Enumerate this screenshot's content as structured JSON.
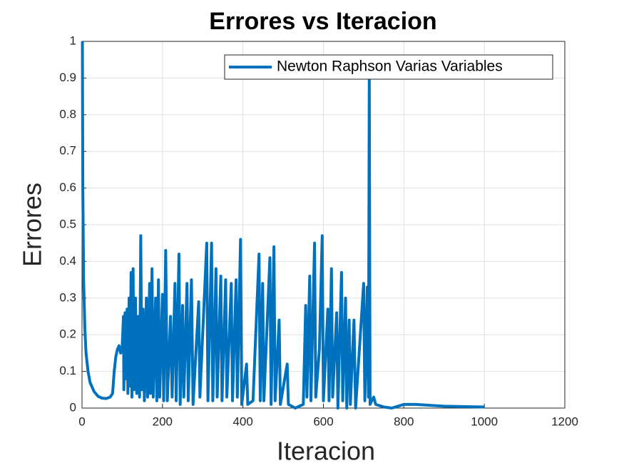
{
  "chart_data": {
    "type": "line",
    "title": "Errores vs  Iteracion",
    "xlabel": "Iteracion",
    "ylabel": "Errores",
    "x": [
      1,
      2,
      4,
      7,
      10,
      15,
      20,
      30,
      40,
      50,
      60,
      70,
      76,
      80,
      84,
      88,
      92,
      96,
      100,
      103,
      104,
      107,
      109,
      112,
      114,
      117,
      119,
      122,
      124,
      127,
      129,
      133,
      136,
      140,
      143,
      146,
      149,
      152,
      155,
      160,
      163,
      168,
      170,
      174,
      177,
      183,
      186,
      190,
      193,
      200,
      203,
      208,
      212,
      220,
      224,
      231,
      234,
      241,
      244,
      250,
      253,
      261,
      264,
      272,
      276,
      290,
      293,
      310,
      313,
      322,
      325,
      333,
      336,
      345,
      348,
      357,
      360,
      371,
      374,
      383,
      386,
      394,
      397,
      409,
      412,
      425,
      440,
      443,
      449,
      452,
      467,
      470,
      477,
      480,
      490,
      493,
      510,
      513,
      530,
      550,
      556,
      559,
      566,
      569,
      578,
      581,
      590,
      597,
      600,
      611,
      614,
      620,
      623,
      633,
      636,
      645,
      648,
      655,
      658,
      664,
      667,
      676,
      680,
      700,
      703,
      709,
      712,
      714,
      716,
      720,
      725,
      730,
      750,
      770,
      800,
      830,
      900,
      1000
    ],
    "series": [
      {
        "name": "Newton Raphson Varias Variables",
        "color": "#0072bd",
        "values": [
          1,
          0.6,
          0.35,
          0.22,
          0.15,
          0.1,
          0.07,
          0.045,
          0.032,
          0.027,
          0.026,
          0.03,
          0.04,
          0.1,
          0.14,
          0.16,
          0.17,
          0.15,
          0.17,
          0.25,
          0.05,
          0.26,
          0.08,
          0.27,
          0.04,
          0.3,
          0.06,
          0.37,
          0.03,
          0.38,
          0.05,
          0.3,
          0.04,
          0.25,
          0.03,
          0.47,
          0.05,
          0.27,
          0.02,
          0.3,
          0.03,
          0.34,
          0.04,
          0.38,
          0.03,
          0.3,
          0.02,
          0.35,
          0.03,
          0.31,
          0.02,
          0.43,
          0.02,
          0.25,
          0.03,
          0.34,
          0.02,
          0.42,
          0.01,
          0.28,
          0.03,
          0.34,
          0.02,
          0.35,
          0.01,
          0.29,
          0.03,
          0.45,
          0.02,
          0.45,
          0.02,
          0.38,
          0.03,
          0.36,
          0.02,
          0.35,
          0.03,
          0.34,
          0.02,
          0.35,
          0.03,
          0.46,
          0.01,
          0.12,
          0.01,
          0.02,
          0.42,
          0.02,
          0.34,
          0.02,
          0.41,
          0.01,
          0.44,
          0.02,
          0.24,
          0.01,
          0.12,
          0.01,
          0,
          0.01,
          0.28,
          0.03,
          0.36,
          0.02,
          0.45,
          0.03,
          0.16,
          0.47,
          0.02,
          0.27,
          0.02,
          0.38,
          0.03,
          0.26,
          0,
          0.37,
          0.02,
          0.3,
          0,
          0.24,
          0.01,
          0.24,
          0,
          0.34,
          0.02,
          0.33,
          0.03,
          0.9,
          0.01,
          0.02,
          0.03,
          0.01,
          0.003,
          0,
          0.01,
          0.01,
          0.005,
          0.003
        ]
      }
    ],
    "xlim": [
      0,
      1200
    ],
    "xticks": [
      0,
      200,
      400,
      600,
      800,
      1000,
      1200
    ],
    "ylim": [
      0,
      1
    ],
    "yticks": [
      0,
      0.1,
      0.2,
      0.3,
      0.4,
      0.5,
      0.6,
      0.7,
      0.8,
      0.9,
      1
    ],
    "grid": true,
    "legend": "northeast"
  }
}
